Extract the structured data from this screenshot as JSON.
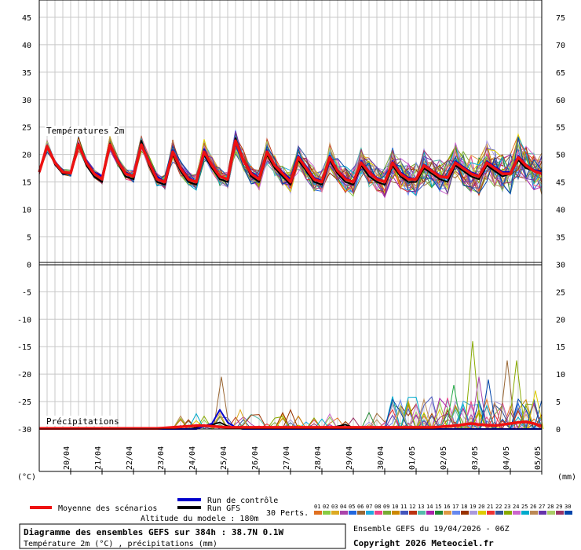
{
  "chart_data": {
    "type": "line",
    "left_axis": {
      "ticks": [
        "45",
        "40",
        "35",
        "30",
        "25",
        "20",
        "15",
        "10",
        "5",
        "0",
        "-5",
        "-10",
        "-15",
        "-20",
        "-25",
        "-30"
      ],
      "unit": "(°C)"
    },
    "right_axis": {
      "ticks": [
        "75",
        "70",
        "65",
        "60",
        "55",
        "50",
        "45",
        "40",
        "35",
        "30",
        "25",
        "20",
        "15",
        "10",
        "5",
        "0"
      ],
      "unit": "(mm)"
    },
    "x_labels": [
      "20/04",
      "21/04",
      "22/04",
      "23/04",
      "24/04",
      "25/04",
      "26/04",
      "27/04",
      "28/04",
      "29/04",
      "30/04",
      "01/05",
      "02/05",
      "03/05",
      "04/05",
      "05/05"
    ],
    "temp_panel": {
      "label": "Températures 2m",
      "ylim": [
        0,
        45
      ],
      "x": [
        0,
        0.25,
        0.5,
        0.75,
        1,
        1.25,
        1.5,
        1.75,
        2,
        2.25,
        2.5,
        2.75,
        3,
        3.25,
        3.5,
        3.75,
        4,
        4.25,
        4.5,
        4.75,
        5,
        5.25,
        5.5,
        5.75,
        6,
        6.25,
        6.5,
        6.75,
        7,
        7.25,
        7.5,
        7.75,
        8,
        8.25,
        8.5,
        8.75,
        9,
        9.25,
        9.5,
        9.75,
        10,
        10.25,
        10.5,
        10.75,
        11,
        11.25,
        11.5,
        11.75,
        12,
        12.25,
        12.5,
        12.75,
        13,
        13.25,
        13.5,
        13.75,
        14,
        14.25,
        14.5,
        14.75,
        15,
        15.25,
        15.5,
        15.75,
        16
      ],
      "mean": [
        16.8,
        21.5,
        18.5,
        16.8,
        16.6,
        21.8,
        18.5,
        16.5,
        15.5,
        21.8,
        18.8,
        16.5,
        16.0,
        21.8,
        18.5,
        15.5,
        15.0,
        20.5,
        17.5,
        15.5,
        15.0,
        20.5,
        18.0,
        16.0,
        15.5,
        22.5,
        19.0,
        16.5,
        15.5,
        20.5,
        18.0,
        16.5,
        15.0,
        19.5,
        17.5,
        15.5,
        15.0,
        19.5,
        17.0,
        15.5,
        15.0,
        18.5,
        16.8,
        15.5,
        15.0,
        18.5,
        16.5,
        15.5,
        15.5,
        18.0,
        17.0,
        16.0,
        15.8,
        18.5,
        17.5,
        16.5,
        16.0,
        18.5,
        17.5,
        16.5,
        16.5,
        19.5,
        18.0,
        17.0,
        16.5
      ],
      "gfs": [
        16.8,
        21.5,
        18.2,
        16.5,
        16.5,
        22.0,
        18.0,
        16.0,
        15.0,
        22.0,
        18.5,
        16.0,
        15.5,
        22.5,
        18.0,
        15.0,
        14.5,
        20.0,
        17.0,
        15.0,
        14.5,
        20.0,
        17.5,
        15.5,
        15.0,
        23.0,
        19.0,
        16.0,
        15.0,
        20.0,
        17.5,
        16.0,
        14.5,
        19.0,
        17.0,
        15.0,
        14.5,
        19.0,
        16.5,
        15.0,
        14.5,
        18.0,
        16.0,
        15.0,
        14.5,
        18.0,
        16.0,
        15.0,
        15.0,
        17.5,
        16.5,
        15.5,
        15.0,
        18.0,
        17.0,
        16.0,
        15.5,
        18.0,
        17.0,
        16.0,
        16.5,
        19.0,
        17.5,
        17.0,
        17.0
      ],
      "control": [
        16.8,
        21.5,
        18.8,
        16.8,
        16.5,
        21.5,
        18.8,
        16.8,
        16.0,
        21.5,
        18.5,
        16.8,
        16.0,
        21.5,
        18.8,
        16.0,
        15.0,
        20.8,
        17.8,
        15.8,
        15.0,
        21.0,
        18.0,
        16.0,
        15.5,
        22.0,
        19.2,
        16.8,
        15.8,
        20.8,
        18.2,
        16.8,
        15.5,
        19.8,
        17.8,
        15.8,
        15.2,
        19.8,
        17.2,
        15.8,
        15.0,
        18.8,
        17.0,
        15.8,
        15.0,
        18.8,
        16.8,
        15.8,
        15.5,
        18.2,
        17.2,
        16.2,
        15.8,
        18.8,
        17.8,
        16.8,
        16.2,
        18.8,
        17.8,
        16.8,
        16.8,
        19.8,
        18.2,
        17.2,
        16.8
      ]
    },
    "precip_panel": {
      "label": "Précipitations",
      "ylim": [
        0,
        30
      ],
      "x": [
        0,
        0.25,
        0.5,
        0.75,
        1,
        1.25,
        1.5,
        1.75,
        2,
        2.25,
        2.5,
        2.75,
        3,
        3.25,
        3.5,
        3.75,
        4,
        4.25,
        4.5,
        4.75,
        5,
        5.25,
        5.5,
        5.75,
        6,
        6.25,
        6.5,
        6.75,
        7,
        7.25,
        7.5,
        7.75,
        8,
        8.25,
        8.5,
        8.75,
        9,
        9.25,
        9.5,
        9.75,
        10,
        10.25,
        10.5,
        10.75,
        11,
        11.25,
        11.5,
        11.75,
        12,
        12.25,
        12.5,
        12.75,
        13,
        13.25,
        13.5,
        13.75,
        14,
        14.25,
        14.5,
        14.75,
        15,
        15.25,
        15.5,
        15.75,
        16
      ],
      "mean": [
        0.1,
        0.1,
        0.1,
        0.1,
        0.1,
        0.1,
        0.1,
        0.1,
        0.1,
        0.1,
        0.1,
        0.1,
        0.1,
        0.1,
        0.1,
        0.1,
        0.2,
        0.3,
        0.4,
        0.5,
        0.6,
        0.6,
        0.5,
        0.4,
        0.3,
        0.3,
        0.3,
        0.3,
        0.3,
        0.3,
        0.3,
        0.3,
        0.3,
        0.3,
        0.3,
        0.3,
        0.3,
        0.3,
        0.3,
        0.3,
        0.3,
        0.3,
        0.3,
        0.3,
        0.3,
        0.3,
        0.3,
        0.3,
        0.3,
        0.3,
        0.3,
        0.4,
        0.5,
        0.6,
        0.8,
        1.0,
        0.8,
        0.7,
        0.6,
        0.8,
        1.0,
        1.2,
        1.3,
        1.0,
        0.5
      ],
      "gfs": [
        0,
        0,
        0,
        0,
        0,
        0,
        0,
        0,
        0,
        0,
        0,
        0,
        0,
        0,
        0,
        0,
        0,
        0,
        0,
        0,
        0.2,
        0.5,
        0.8,
        1.2,
        0.5,
        0.2,
        0,
        0,
        0,
        0,
        0,
        0,
        0,
        0,
        0,
        0,
        0,
        0,
        0.5,
        0.8,
        0.2,
        0,
        0,
        0,
        0,
        0,
        0,
        0,
        0,
        0,
        0,
        0,
        0,
        0,
        0,
        0,
        0,
        0,
        0,
        0,
        0,
        0,
        0,
        0,
        0
      ],
      "control": [
        0,
        0,
        0,
        0,
        0,
        0,
        0,
        0,
        0,
        0,
        0,
        0,
        0,
        0,
        0,
        0,
        0,
        0,
        0,
        0,
        0,
        0.5,
        1.0,
        3.5,
        1.2,
        0.3,
        0,
        0,
        0,
        0,
        0,
        0,
        0,
        0,
        0,
        0,
        0,
        0,
        0,
        0,
        0,
        0,
        0,
        0,
        0,
        0,
        0,
        0,
        0,
        0,
        0,
        0,
        0,
        0,
        0,
        0,
        0,
        0,
        0,
        0,
        0,
        0,
        0,
        0,
        0
      ]
    }
  },
  "legend": {
    "mean_label": "Moyenne des scénarios",
    "control_label": "Run de contrôle",
    "gfs_label": "Run GFS",
    "perts_label": "30 Perts.",
    "altitude_label": "Altitude du modele : 180m",
    "pert_numbers": [
      "01",
      "02",
      "03",
      "04",
      "05",
      "06",
      "07",
      "08",
      "09",
      "10",
      "11",
      "12",
      "13",
      "14",
      "15",
      "16",
      "17",
      "18",
      "19",
      "20",
      "21",
      "22",
      "23",
      "24",
      "25",
      "26",
      "27",
      "28",
      "29",
      "30"
    ],
    "pert_colors": [
      "#e07020",
      "#88cc44",
      "#ddaa22",
      "#aa44aa",
      "#2266dd",
      "#996633",
      "#22aadd",
      "#ee4488",
      "#77aa33",
      "#cc8800",
      "#4455bb",
      "#bb3311",
      "#55bbaa",
      "#aa22aa",
      "#228833",
      "#dd9944",
      "#6688ee",
      "#993300",
      "#aa99dd",
      "#ddcc00",
      "#ee3333",
      "#335599",
      "#88aa00",
      "#cc66cc",
      "#00aacc",
      "#bb8855",
      "#6633aa",
      "#aacc66",
      "#993366",
      "#0044aa"
    ]
  },
  "footer": {
    "title": "Diagramme des ensembles GEFS sur 384h : 38.7N 0.1W",
    "subtitle": "Température 2m (°C) , précipitations (mm)",
    "run_info": "Ensemble GEFS du 19/04/2026 - 06Z",
    "copyright": "Copyright 2026 Meteociel.fr"
  },
  "colors": {
    "mean": "#ee1111",
    "gfs": "#000000",
    "control": "#0000cc",
    "grid": "#c8c8c8",
    "frame": "#000000"
  }
}
